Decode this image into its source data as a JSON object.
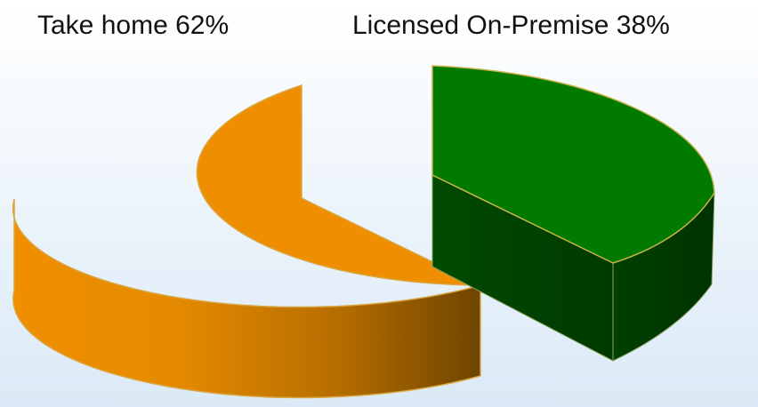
{
  "chart_data": {
    "type": "pie",
    "title": "",
    "slices": [
      {
        "label": "Take home 62%",
        "value": 62,
        "color": "#ee8e00"
      },
      {
        "label": "Licensed On-Premise 38%",
        "value": 38,
        "color": "#007b00"
      }
    ],
    "legend": "none",
    "style": "3d-exploded"
  }
}
